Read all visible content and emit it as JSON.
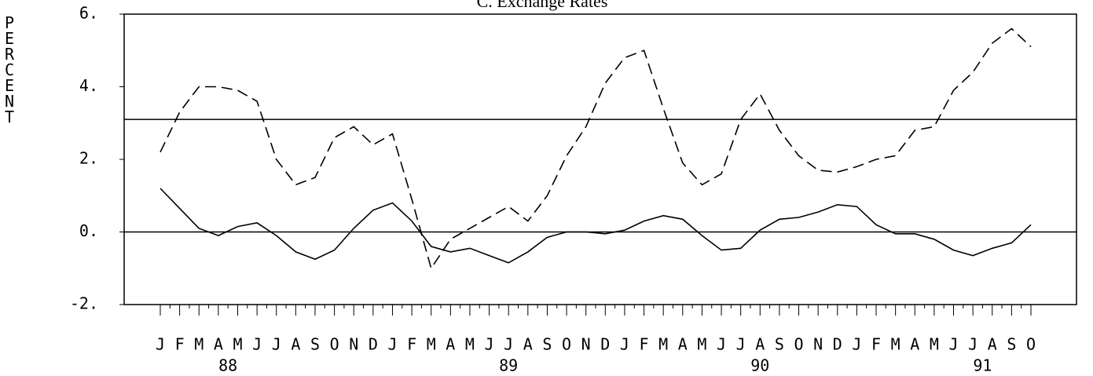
{
  "chart_data": {
    "type": "line",
    "title": "C.  Exchange Rates",
    "ylabel": "PERCENT",
    "categories": [
      "J",
      "F",
      "M",
      "A",
      "M",
      "J",
      "J",
      "A",
      "S",
      "O",
      "N",
      "D",
      "J",
      "F",
      "M",
      "A",
      "M",
      "J",
      "J",
      "A",
      "S",
      "O",
      "N",
      "D",
      "J",
      "F",
      "M",
      "A",
      "M",
      "J",
      "J",
      "A",
      "S",
      "O",
      "N",
      "D",
      "J",
      "F",
      "M",
      "A",
      "M",
      "J",
      "J",
      "A",
      "S",
      "O"
    ],
    "years": [
      "88",
      "89",
      "90",
      "91"
    ],
    "series": [
      {
        "style": "dashed",
        "color": "#000000",
        "values": [
          2.2,
          3.3,
          4.0,
          4.0,
          3.9,
          3.6,
          2.0,
          1.3,
          1.5,
          2.6,
          2.9,
          2.4,
          2.7,
          0.9,
          -1.0,
          -0.2,
          0.1,
          0.4,
          0.7,
          0.3,
          1.0,
          2.1,
          2.9,
          4.1,
          4.8,
          5.0,
          3.4,
          1.9,
          1.3,
          1.6,
          3.1,
          3.8,
          2.8,
          2.1,
          1.7,
          1.65,
          1.8,
          2.0,
          2.1,
          2.8,
          2.9,
          3.9,
          4.4,
          5.2,
          5.6,
          5.1
        ]
      },
      {
        "style": "solid",
        "color": "#000000",
        "values": [
          1.2,
          0.65,
          0.1,
          -0.1,
          0.15,
          0.25,
          -0.1,
          -0.55,
          -0.75,
          -0.5,
          0.1,
          0.6,
          0.8,
          0.3,
          -0.4,
          -0.55,
          -0.45,
          -0.65,
          -0.85,
          -0.55,
          -0.15,
          0.0,
          0.0,
          -0.05,
          0.05,
          0.3,
          0.45,
          0.35,
          -0.1,
          -0.5,
          -0.45,
          0.05,
          0.35,
          0.4,
          0.55,
          0.75,
          0.7,
          0.2,
          -0.05,
          -0.05,
          -0.2,
          -0.5,
          -0.65,
          -0.45,
          -0.3,
          0.2
        ]
      }
    ],
    "reference_lines": [
      0,
      3.1
    ],
    "ylim": [
      -2,
      6
    ],
    "yticks": [
      {
        "value": -2,
        "label": "-2."
      },
      {
        "value": 0,
        "label": "0."
      },
      {
        "value": 2,
        "label": "2."
      },
      {
        "value": 4,
        "label": "4."
      },
      {
        "value": 6,
        "label": "6."
      }
    ]
  }
}
